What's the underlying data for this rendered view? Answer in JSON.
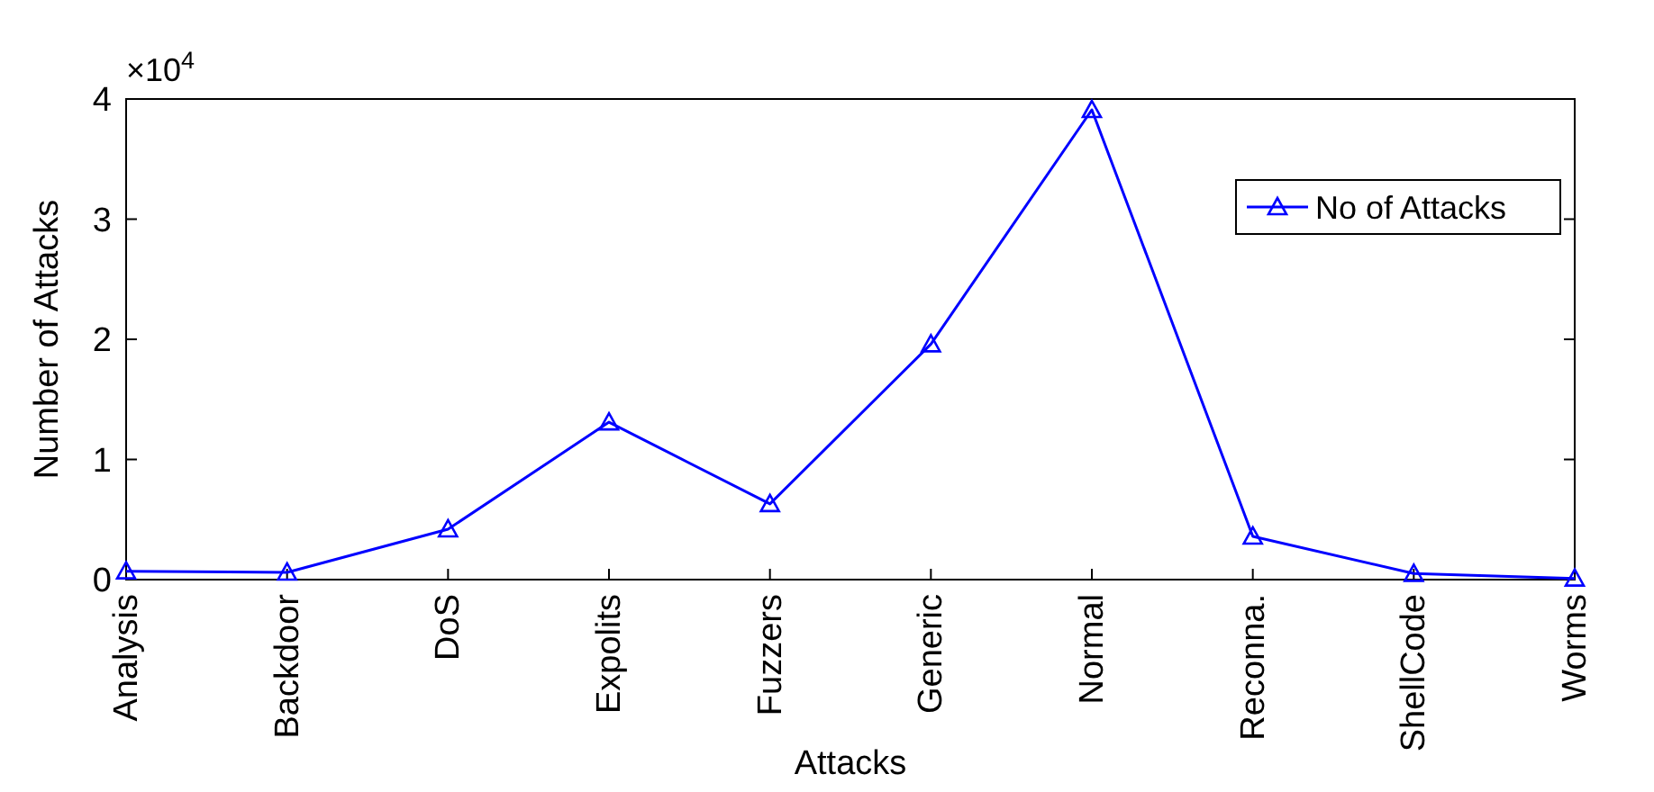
{
  "chart_data": {
    "type": "line",
    "xlabel": "Attacks",
    "ylabel": "Number of Attacks",
    "categories": [
      "Analysis",
      "Backdoor",
      "DoS",
      "Expolits",
      "Fuzzers",
      "Generic",
      "Normal",
      "Reconna.",
      "ShellCode",
      "Worms"
    ],
    "series": [
      {
        "name": "No of Attacks",
        "color": "#0000ff",
        "values": [
          0.07,
          0.06,
          0.42,
          1.31,
          0.63,
          1.96,
          3.91,
          0.36,
          0.05,
          0.01
        ]
      }
    ],
    "ylim": [
      0,
      4
    ],
    "yticks": [
      0,
      1,
      2,
      3,
      4
    ],
    "annotations": [
      "×10$^{4}$"
    ],
    "marker": "triangle",
    "line_style": "solid",
    "grid": false,
    "legend": "top right"
  }
}
